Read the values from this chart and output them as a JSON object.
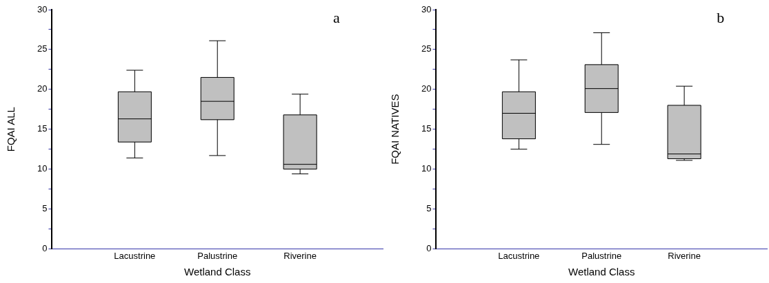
{
  "chart_data": [
    {
      "type": "box",
      "xlabel": "Wetland Class",
      "ylabel": "FQAI ALL",
      "categories": [
        "Lacustrine",
        "Palustrine",
        "Riverine"
      ],
      "color": "#c0c0c0",
      "boxes": [
        {
          "low": 11.4,
          "q1": 13.4,
          "median": 16.3,
          "q3": 19.7,
          "high": 22.4
        },
        {
          "low": 11.7,
          "q1": 16.2,
          "median": 18.5,
          "q3": 21.5,
          "high": 26.1
        },
        {
          "low": 9.4,
          "q1": 10.0,
          "median": 10.6,
          "q3": 16.8,
          "high": 19.4
        }
      ],
      "ylim": [
        0,
        30
      ],
      "yticks": [
        0,
        {
          "value": 2.5,
          "label": null
        },
        5,
        {
          "value": 7.5,
          "label": null
        },
        10,
        {
          "value": 12.5,
          "label": null
        },
        15,
        {
          "value": 17.5,
          "label": null
        },
        20,
        {
          "value": 22.5,
          "label": null
        },
        25,
        {
          "value": 27.5,
          "label": null
        },
        30
      ],
      "annotations": [
        "a"
      ]
    },
    {
      "type": "box",
      "xlabel": "Wetland Class",
      "ylabel": "FQAI NATIVES",
      "categories": [
        "Lacustrine",
        "Palustrine",
        "Riverine"
      ],
      "color": "#c0c0c0",
      "boxes": [
        {
          "low": 12.5,
          "q1": 13.8,
          "median": 17.0,
          "q3": 19.7,
          "high": 23.7
        },
        {
          "low": 13.1,
          "q1": 17.1,
          "median": 20.1,
          "q3": 23.1,
          "high": 27.1
        },
        {
          "low": 11.1,
          "q1": 11.3,
          "median": 11.9,
          "q3": 18.0,
          "high": 20.4
        }
      ],
      "ylim": [
        0,
        30
      ],
      "yticks": [
        0,
        {
          "value": 2.5,
          "label": null
        },
        5,
        {
          "value": 7.5,
          "label": null
        },
        10,
        {
          "value": 12.5,
          "label": null
        },
        15,
        {
          "value": 17.5,
          "label": null
        },
        20,
        {
          "value": 22.5,
          "label": null
        },
        25,
        {
          "value": 27.5,
          "label": null
        },
        30
      ],
      "annotations": [
        "b"
      ]
    }
  ]
}
